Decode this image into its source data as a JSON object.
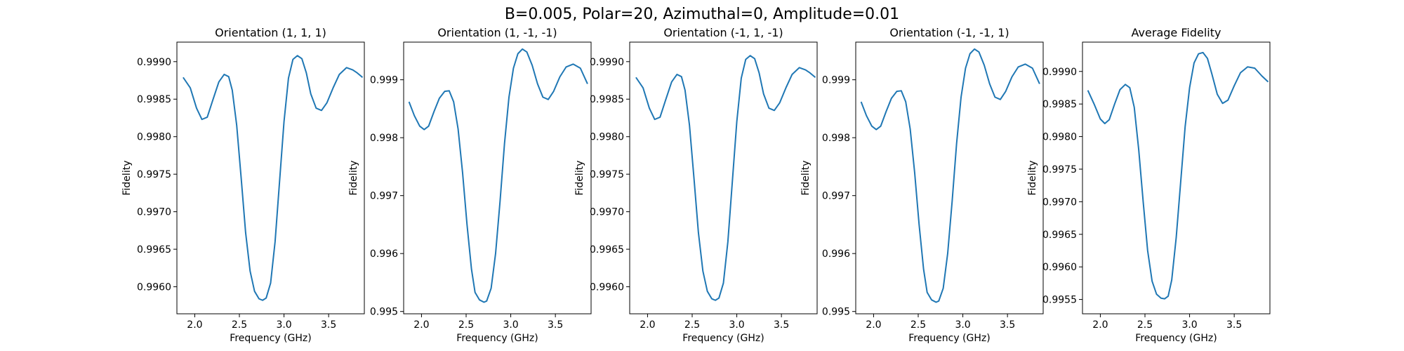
{
  "figure": {
    "suptitle": "B=0.005, Polar=20, Azimuthal=0, Amplitude=0.01"
  },
  "chart_data": [
    {
      "type": "line",
      "title": "Orientation (1, 1, 1)",
      "xlabel": "Frequency (GHz)",
      "ylabel": "Fidelity",
      "xlim": [
        1.8,
        3.9
      ],
      "ylim": [
        0.99564,
        0.99926
      ],
      "xticks": [
        2.0,
        2.5,
        3.0,
        3.5
      ],
      "xtick_labels": [
        "2.0",
        "2.5",
        "3.0",
        "3.5"
      ],
      "yticks": [
        0.996,
        0.9965,
        0.997,
        0.9975,
        0.998,
        0.9985,
        0.999
      ],
      "ytick_labels": [
        "0.9960",
        "0.9965",
        "0.9970",
        "0.9975",
        "0.9980",
        "0.9985",
        "0.9990"
      ],
      "series": [
        {
          "color": "#1f77b4",
          "x": [
            1.87,
            1.95,
            2.02,
            2.08,
            2.14,
            2.2,
            2.27,
            2.33,
            2.38,
            2.42,
            2.47,
            2.52,
            2.57,
            2.62,
            2.67,
            2.72,
            2.76,
            2.8,
            2.85,
            2.9,
            2.95,
            3.0,
            3.05,
            3.1,
            3.15,
            3.2,
            3.25,
            3.3,
            3.36,
            3.42,
            3.48,
            3.55,
            3.62,
            3.7,
            3.77,
            3.82,
            3.88
          ],
          "y": [
            0.99879,
            0.99865,
            0.99838,
            0.99823,
            0.99826,
            0.99848,
            0.99873,
            0.99883,
            0.9988,
            0.99862,
            0.99815,
            0.99745,
            0.99672,
            0.99621,
            0.99594,
            0.99584,
            0.99582,
            0.99585,
            0.99605,
            0.9966,
            0.9974,
            0.9982,
            0.99878,
            0.99903,
            0.99908,
            0.99904,
            0.99885,
            0.99857,
            0.99838,
            0.99835,
            0.99845,
            0.99865,
            0.99883,
            0.99892,
            0.99889,
            0.99885,
            0.99879
          ]
        }
      ]
    },
    {
      "type": "line",
      "title": "Orientation (1, -1, -1)",
      "xlabel": "Frequency (GHz)",
      "ylabel": "Fidelity",
      "xlim": [
        1.8,
        3.9
      ],
      "ylim": [
        0.99496,
        0.99965
      ],
      "xticks": [
        2.0,
        2.5,
        3.0,
        3.5
      ],
      "xtick_labels": [
        "2.0",
        "2.5",
        "3.0",
        "3.5"
      ],
      "yticks": [
        0.995,
        0.996,
        0.997,
        0.998,
        0.999
      ],
      "ytick_labels": [
        "0.995",
        "0.996",
        "0.997",
        "0.998",
        "0.999"
      ],
      "series": [
        {
          "color": "#1f77b4",
          "x": [
            1.86,
            1.92,
            1.98,
            2.03,
            2.08,
            2.14,
            2.2,
            2.26,
            2.31,
            2.36,
            2.41,
            2.46,
            2.51,
            2.56,
            2.6,
            2.65,
            2.7,
            2.73,
            2.78,
            2.83,
            2.88,
            2.93,
            2.98,
            3.03,
            3.08,
            3.13,
            3.18,
            3.24,
            3.3,
            3.36,
            3.42,
            3.48,
            3.55,
            3.62,
            3.7,
            3.78,
            3.86
          ],
          "y": [
            0.99862,
            0.99838,
            0.9982,
            0.99814,
            0.9982,
            0.99845,
            0.99868,
            0.9988,
            0.99881,
            0.99862,
            0.99815,
            0.9974,
            0.9965,
            0.99573,
            0.99533,
            0.9952,
            0.99516,
            0.99518,
            0.9954,
            0.996,
            0.9969,
            0.9979,
            0.9987,
            0.9992,
            0.99945,
            0.99953,
            0.99948,
            0.99925,
            0.99893,
            0.9987,
            0.99866,
            0.9988,
            0.99905,
            0.99922,
            0.99927,
            0.9992,
            0.99893
          ]
        }
      ]
    },
    {
      "type": "line",
      "title": "Orientation (-1, 1, -1)",
      "xlabel": "Frequency (GHz)",
      "ylabel": "Fidelity",
      "xlim": [
        1.8,
        3.9
      ],
      "ylim": [
        0.99564,
        0.99926
      ],
      "xticks": [
        2.0,
        2.5,
        3.0,
        3.5
      ],
      "xtick_labels": [
        "2.0",
        "2.5",
        "3.0",
        "3.5"
      ],
      "yticks": [
        0.996,
        0.9965,
        0.997,
        0.9975,
        0.998,
        0.9985,
        0.999
      ],
      "ytick_labels": [
        "0.9960",
        "0.9965",
        "0.9970",
        "0.9975",
        "0.9980",
        "0.9985",
        "0.9990"
      ],
      "series": [
        {
          "color": "#1f77b4",
          "x": [
            1.87,
            1.95,
            2.02,
            2.08,
            2.14,
            2.2,
            2.27,
            2.33,
            2.38,
            2.42,
            2.47,
            2.52,
            2.57,
            2.62,
            2.67,
            2.72,
            2.76,
            2.8,
            2.85,
            2.9,
            2.95,
            3.0,
            3.05,
            3.1,
            3.15,
            3.2,
            3.25,
            3.3,
            3.36,
            3.42,
            3.48,
            3.55,
            3.62,
            3.7,
            3.77,
            3.82,
            3.88
          ],
          "y": [
            0.99879,
            0.99865,
            0.99838,
            0.99823,
            0.99826,
            0.99848,
            0.99873,
            0.99883,
            0.9988,
            0.99862,
            0.99815,
            0.99745,
            0.99672,
            0.99621,
            0.99594,
            0.99584,
            0.99582,
            0.99585,
            0.99605,
            0.9966,
            0.9974,
            0.9982,
            0.99878,
            0.99903,
            0.99908,
            0.99904,
            0.99885,
            0.99857,
            0.99838,
            0.99835,
            0.99845,
            0.99865,
            0.99883,
            0.99892,
            0.99889,
            0.99885,
            0.99879
          ]
        }
      ]
    },
    {
      "type": "line",
      "title": "Orientation (-1, -1, 1)",
      "xlabel": "Frequency (GHz)",
      "ylabel": "Fidelity",
      "xlim": [
        1.8,
        3.9
      ],
      "ylim": [
        0.99496,
        0.99965
      ],
      "xticks": [
        2.0,
        2.5,
        3.0,
        3.5
      ],
      "xtick_labels": [
        "2.0",
        "2.5",
        "3.0",
        "3.5"
      ],
      "yticks": [
        0.995,
        0.996,
        0.997,
        0.998,
        0.999
      ],
      "ytick_labels": [
        "0.995",
        "0.996",
        "0.997",
        "0.998",
        "0.999"
      ],
      "series": [
        {
          "color": "#1f77b4",
          "x": [
            1.86,
            1.92,
            1.98,
            2.03,
            2.08,
            2.14,
            2.2,
            2.26,
            2.31,
            2.36,
            2.41,
            2.46,
            2.51,
            2.56,
            2.6,
            2.65,
            2.7,
            2.73,
            2.78,
            2.83,
            2.88,
            2.93,
            2.98,
            3.03,
            3.08,
            3.13,
            3.18,
            3.24,
            3.3,
            3.36,
            3.42,
            3.48,
            3.55,
            3.62,
            3.7,
            3.78,
            3.86
          ],
          "y": [
            0.99862,
            0.99838,
            0.9982,
            0.99814,
            0.9982,
            0.99845,
            0.99868,
            0.9988,
            0.99881,
            0.99862,
            0.99815,
            0.9974,
            0.9965,
            0.99573,
            0.99533,
            0.9952,
            0.99516,
            0.99518,
            0.9954,
            0.996,
            0.9969,
            0.9979,
            0.9987,
            0.9992,
            0.99945,
            0.99953,
            0.99948,
            0.99925,
            0.99893,
            0.9987,
            0.99866,
            0.9988,
            0.99905,
            0.99922,
            0.99927,
            0.9992,
            0.99893
          ]
        }
      ]
    },
    {
      "type": "line",
      "title": "Average Fidelity",
      "xlabel": "Frequency (GHz)",
      "ylabel": "Fidelity",
      "xlim": [
        1.8,
        3.9
      ],
      "ylim": [
        0.99528,
        0.99945
      ],
      "xticks": [
        2.0,
        2.5,
        3.0,
        3.5
      ],
      "xtick_labels": [
        "2.0",
        "2.5",
        "3.0",
        "3.5"
      ],
      "yticks": [
        0.9955,
        0.996,
        0.9965,
        0.997,
        0.9975,
        0.998,
        0.9985,
        0.999
      ],
      "ytick_labels": [
        "0.9955",
        "0.9960",
        "0.9965",
        "0.9970",
        "0.9975",
        "0.9980",
        "0.9985",
        "0.9990"
      ],
      "series": [
        {
          "color": "#1f77b4",
          "x": [
            1.86,
            1.93,
            2.0,
            2.05,
            2.1,
            2.16,
            2.22,
            2.28,
            2.33,
            2.38,
            2.43,
            2.48,
            2.53,
            2.58,
            2.63,
            2.68,
            2.72,
            2.76,
            2.8,
            2.85,
            2.9,
            2.95,
            3.0,
            3.05,
            3.1,
            3.15,
            3.2,
            3.25,
            3.31,
            3.37,
            3.43,
            3.5,
            3.57,
            3.65,
            3.73,
            3.81,
            3.88
          ],
          "y": [
            0.99871,
            0.9985,
            0.99827,
            0.9982,
            0.99826,
            0.9985,
            0.99872,
            0.9988,
            0.99875,
            0.99845,
            0.9978,
            0.997,
            0.99625,
            0.99578,
            0.99558,
            0.99552,
            0.99551,
            0.99555,
            0.9958,
            0.99645,
            0.9973,
            0.99815,
            0.99875,
            0.99913,
            0.99927,
            0.99929,
            0.9992,
            0.99896,
            0.99865,
            0.99851,
            0.99856,
            0.99878,
            0.99898,
            0.99907,
            0.99905,
            0.99893,
            0.99884
          ]
        }
      ]
    }
  ]
}
